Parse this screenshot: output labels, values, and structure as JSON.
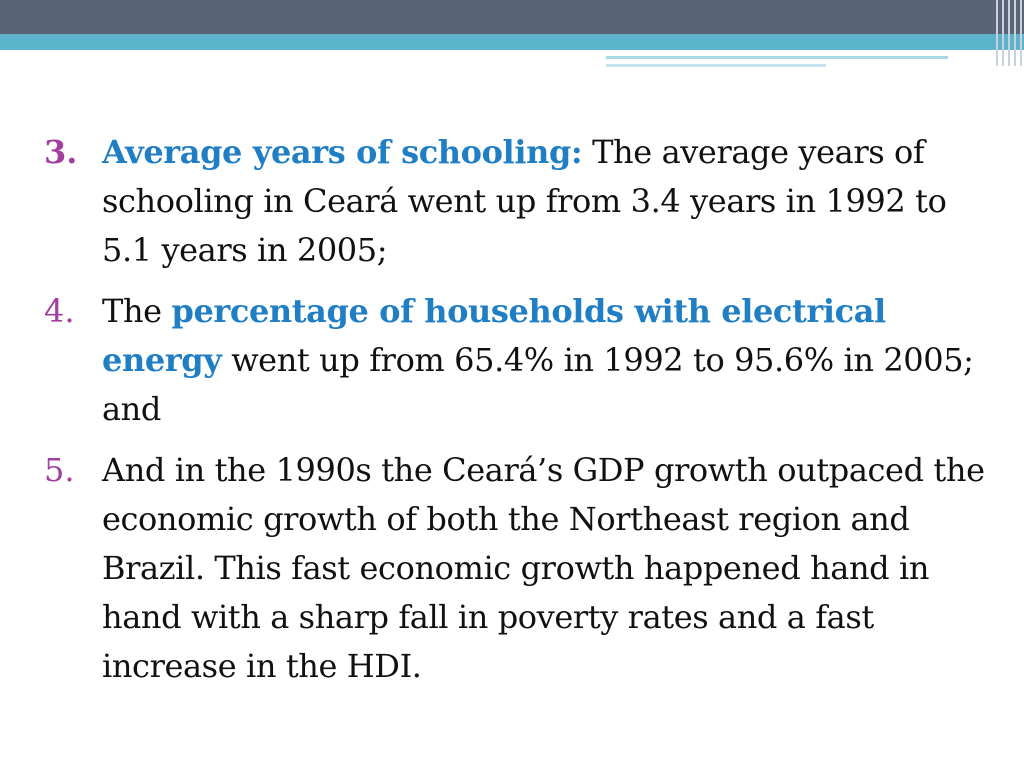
{
  "colors": {
    "header_dark": "#5a6478",
    "header_teal": "#5bb4cc",
    "number_purple": "#a23e9e",
    "highlight_blue": "#1f7ec4",
    "body_text": "#111111"
  },
  "items": [
    {
      "number": "3.",
      "highlight": "Average years of schooling:",
      "text": " The average years of schooling in Ceará went up from 3.4 years in 1992 to 5.1 years in 2005;"
    },
    {
      "number": "4.",
      "prefix": "The ",
      "highlight": "percentage of households with electrical energy",
      "text": " went up from  65.4% in 1992 to 95.6% in 2005;  and"
    },
    {
      "number": "5.",
      "text": "And in the 1990s the Ceará’s GDP growth outpaced the economic growth of both the Northeast region and Brazil. This fast economic growth happened hand in hand with a sharp fall in poverty rates and a fast increase in the HDI."
    }
  ]
}
